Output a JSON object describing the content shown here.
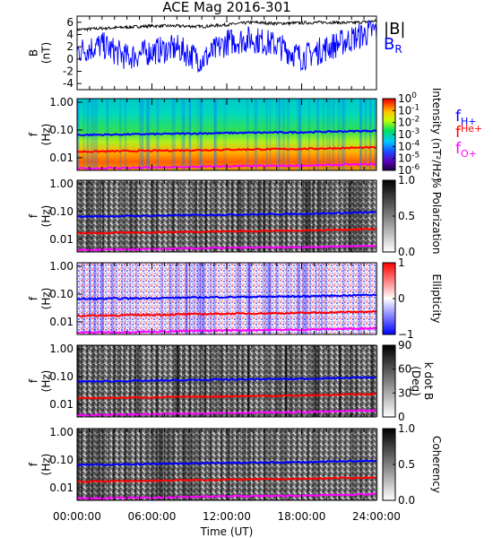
{
  "chart_data": {
    "title": "ACE Mag 2016-301",
    "xlabel": "Time (UT)",
    "x_ticks": [
      "00:00:00",
      "06:00:00",
      "12:00:00",
      "18:00:00",
      "24:00:00"
    ],
    "panels": [
      {
        "id": "mag",
        "type": "line",
        "ylabel_lines": [
          "B",
          "(nT)"
        ],
        "ylim": [
          -5,
          7
        ],
        "y_ticks": [
          {
            "v": 6,
            "t": "6"
          },
          {
            "v": 4,
            "t": "4"
          },
          {
            "v": 2,
            "t": "2"
          },
          {
            "v": 0,
            "t": "0"
          },
          {
            "v": -2,
            "t": "-2"
          },
          {
            "v": -4,
            "t": "-4"
          }
        ],
        "series": [
          {
            "name": "|B|",
            "color": "#000000",
            "x_hours": [
              0,
              2,
              4,
              6,
              8,
              10,
              12,
              14,
              16,
              18,
              20,
              22,
              24
            ],
            "values": [
              4.8,
              5.0,
              5.2,
              5.4,
              5.4,
              5.3,
              5.6,
              6.0,
              5.8,
              5.9,
              6.0,
              5.9,
              6.2
            ]
          },
          {
            "name": "B",
            "subscript": "R",
            "color": "#0000ff",
            "x_hours": [
              0,
              2,
              4,
              6,
              8,
              10,
              12,
              14,
              16,
              18,
              20,
              22,
              24
            ],
            "values": [
              1.5,
              2.5,
              0.5,
              1.5,
              2.0,
              0.0,
              3.0,
              3.5,
              2.5,
              0.5,
              2.0,
              3.5,
              5.0
            ]
          }
        ]
      },
      {
        "id": "intensity",
        "type": "heatmap",
        "ylabel_lines": [
          "f",
          "(Hz)"
        ],
        "colorbar_type": "rainbow",
        "colorbar_label": "Intensity (nT²/Hz)",
        "colorbar_ticks": [
          {
            "base": "10",
            "exp": "0"
          },
          {
            "base": "10",
            "exp": "-1"
          },
          {
            "base": "10",
            "exp": "-2"
          },
          {
            "base": "10",
            "exp": "-3"
          },
          {
            "base": "10",
            "exp": "-4"
          },
          {
            "base": "10",
            "exp": "-5"
          },
          {
            "base": "10",
            "exp": "-6"
          }
        ]
      },
      {
        "id": "polarization",
        "type": "heatmap",
        "ylabel_lines": [
          "f",
          "(Hz)"
        ],
        "colorbar_type": "gray",
        "colorbar_label": "% Polarization",
        "colorbar_ticks": [
          {
            "t": "1.0"
          },
          {
            "t": "0.5"
          },
          {
            "t": "0.0"
          }
        ]
      },
      {
        "id": "ellipticity",
        "type": "heatmap",
        "ylabel_lines": [
          "f",
          "(Hz)"
        ],
        "colorbar_type": "bwr",
        "colorbar_label": "Ellipticity",
        "colorbar_ticks": [
          {
            "t": "1"
          },
          {
            "t": "0"
          },
          {
            "t": "−1"
          }
        ]
      },
      {
        "id": "kdotb",
        "type": "heatmap",
        "ylabel_lines": [
          "f",
          "(Hz)"
        ],
        "colorbar_type": "gray",
        "colorbar_label_lines": [
          "k dot B",
          "(Deg)"
        ],
        "colorbar_ticks": [
          {
            "t": "90"
          },
          {
            "t": "60"
          },
          {
            "t": "30"
          },
          {
            "t": "0"
          }
        ]
      },
      {
        "id": "coherency",
        "type": "heatmap",
        "ylabel_lines": [
          "f",
          "(Hz)"
        ],
        "colorbar_type": "gray",
        "colorbar_label": "Coherency",
        "colorbar_ticks": [
          {
            "t": "1.0"
          },
          {
            "t": "0.5"
          },
          {
            "t": "0.0"
          }
        ]
      }
    ],
    "freq_y_ticks": [
      "1.00",
      "0.10",
      "0.01"
    ],
    "gyro_lines": [
      {
        "label": "f",
        "sub": "H+",
        "color": "#0000ff",
        "x_hours": [
          0,
          6,
          12,
          18,
          24
        ],
        "values_hz": [
          0.066,
          0.071,
          0.078,
          0.083,
          0.094
        ]
      },
      {
        "label": "f",
        "sup": "He+",
        "color": "#ff0000",
        "x_hours": [
          0,
          6,
          12,
          18,
          24
        ],
        "values_hz": [
          0.0165,
          0.0178,
          0.0195,
          0.0208,
          0.0235
        ]
      },
      {
        "label": "f",
        "sub": "O+",
        "color": "#ff00ff",
        "x_hours": [
          0,
          6,
          12,
          18,
          24
        ],
        "values_hz": [
          0.0041,
          0.0044,
          0.0049,
          0.0052,
          0.0059
        ]
      }
    ]
  }
}
